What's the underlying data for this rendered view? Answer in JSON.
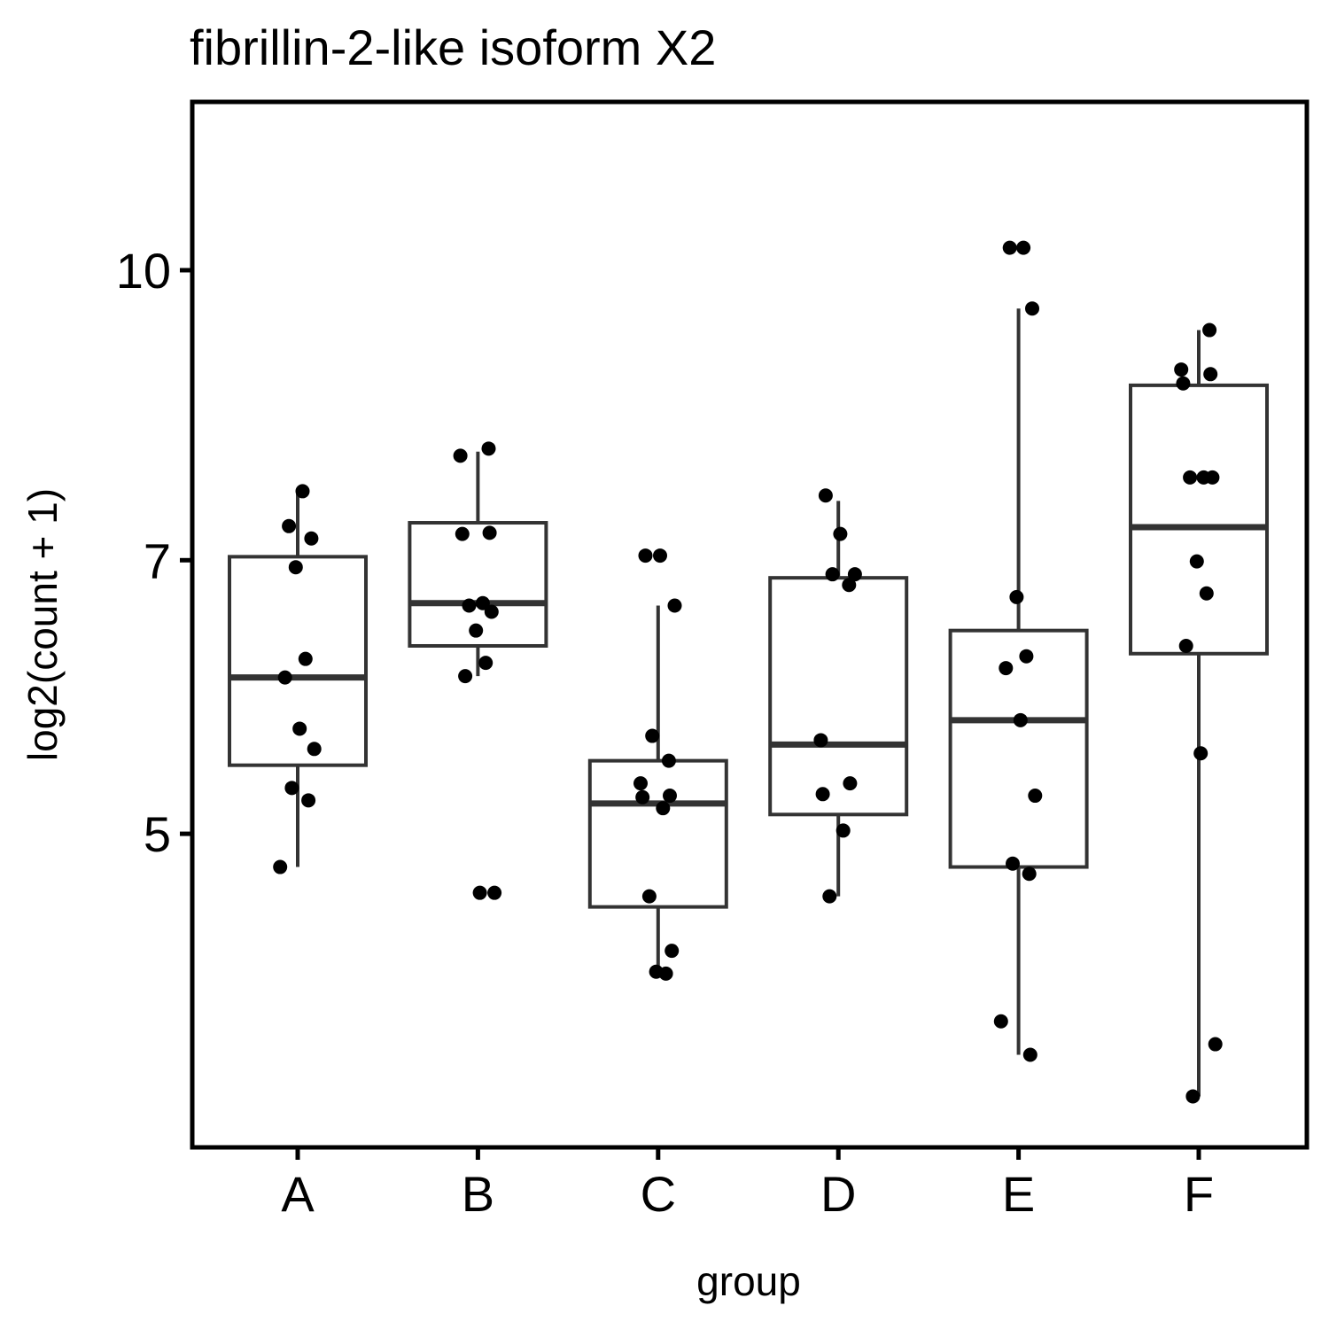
{
  "chart_data": {
    "type": "boxplot",
    "title": "fibrillin-2-like isoform X2",
    "xlabel": "group",
    "ylabel": "log2(count + 1)",
    "y_scale": "log",
    "ylim": [
      3.4,
      12.3
    ],
    "yticks": [
      5,
      7,
      10
    ],
    "grid": false,
    "categories": [
      "A",
      "B",
      "C",
      "D",
      "E",
      "F"
    ],
    "boxes": [
      {
        "group": "A",
        "whisker_low": 4.8,
        "q1": 5.44,
        "median": 6.06,
        "q3": 7.03,
        "whisker_high": 7.6
      },
      {
        "group": "B",
        "whisker_low": 6.07,
        "q1": 6.3,
        "median": 6.64,
        "q3": 7.33,
        "whisker_high": 8.0
      },
      {
        "group": "C",
        "whisker_low": 4.19,
        "q1": 4.57,
        "median": 5.19,
        "q3": 5.47,
        "whisker_high": 6.62
      },
      {
        "group": "D",
        "whisker_low": 4.63,
        "q1": 5.12,
        "median": 5.58,
        "q3": 6.85,
        "whisker_high": 7.53
      },
      {
        "group": "E",
        "whisker_low": 3.81,
        "q1": 4.8,
        "median": 5.75,
        "q3": 6.42,
        "whisker_high": 9.54
      },
      {
        "group": "F",
        "whisker_low": 3.62,
        "q1": 6.24,
        "median": 7.29,
        "q3": 8.68,
        "whisker_high": 9.29
      }
    ],
    "points": [
      {
        "group": "A",
        "values": [
          4.8,
          5.21,
          5.29,
          5.55,
          5.69,
          6.06,
          6.2,
          6.94,
          7.19,
          7.3,
          7.62
        ]
      },
      {
        "group": "B",
        "values": [
          4.65,
          4.65,
          6.07,
          6.17,
          6.42,
          6.57,
          6.62,
          6.64,
          7.23,
          7.24,
          7.96,
          8.03
        ]
      },
      {
        "group": "C",
        "values": [
          4.21,
          4.22,
          4.33,
          4.63,
          5.16,
          5.23,
          5.24,
          5.32,
          5.47,
          5.64,
          6.62,
          7.04,
          7.04
        ]
      },
      {
        "group": "D",
        "values": [
          4.63,
          5.02,
          5.25,
          5.32,
          5.61,
          6.79,
          6.88,
          6.88,
          7.23,
          7.58
        ]
      },
      {
        "group": "E",
        "values": [
          3.81,
          3.97,
          4.76,
          4.82,
          5.24,
          5.75,
          6.13,
          6.22,
          6.69,
          9.54,
          10.28,
          10.28
        ]
      },
      {
        "group": "F",
        "values": [
          3.62,
          3.86,
          5.52,
          6.3,
          6.72,
          6.99,
          7.75,
          7.75,
          7.75,
          8.7,
          8.8,
          8.85,
          9.29
        ]
      }
    ],
    "colors": {
      "box_stroke": "#333333",
      "point": "#000000",
      "frame": "#000000"
    }
  }
}
